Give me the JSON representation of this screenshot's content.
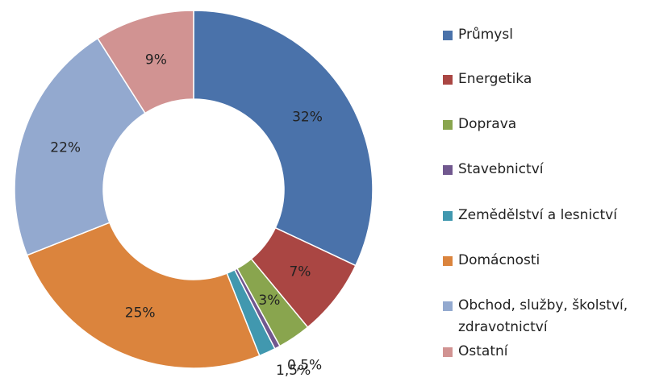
{
  "chart_data": {
    "type": "donut",
    "categories": [
      "Průmysl",
      "Energetika",
      "Doprava",
      "Stavebnictví",
      "Zemědělství a lesnictví",
      "Domácnosti",
      "Obchod, služby, školství, zdravotnictví",
      "Ostatní"
    ],
    "values": [
      32,
      7,
      3,
      0.5,
      1.5,
      25,
      22,
      9
    ],
    "value_labels": [
      "32%",
      "7%",
      "3%",
      "0,5%",
      "1,5%",
      "25%",
      "22%",
      "9%"
    ],
    "colors": [
      "#4a72aa",
      "#aa4643",
      "#89a54e",
      "#71588f",
      "#4198af",
      "#db843d",
      "#93a9cf",
      "#d19392"
    ],
    "legend": "right"
  }
}
